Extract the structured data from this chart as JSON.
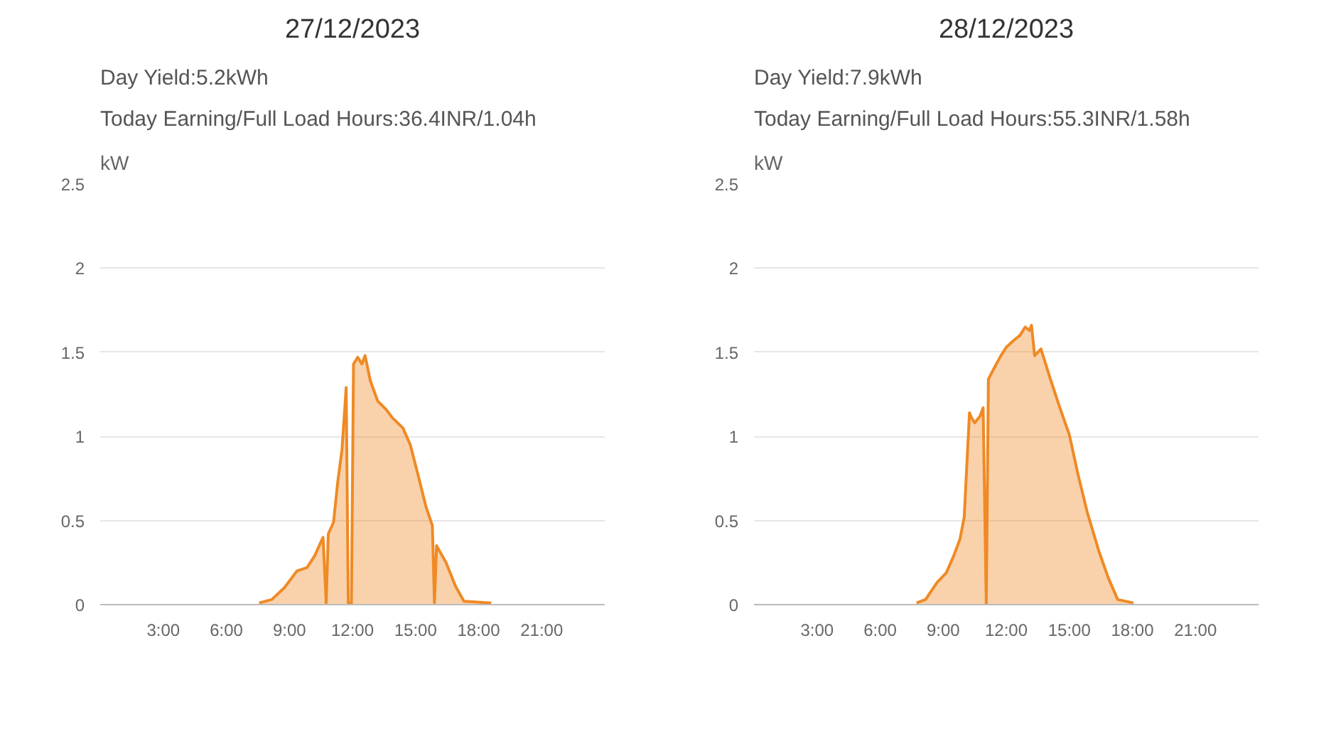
{
  "chart_data": [
    {
      "type": "area",
      "title": "27/12/2023",
      "subtitle": "Day Yield:5.2kWh",
      "annotations": [
        "Today Earning/Full Load Hours:36.4INR/1.04h"
      ],
      "ylabel": "kW",
      "xlim": [
        0,
        24
      ],
      "ylim": [
        0,
        2.5
      ],
      "xticks": [
        {
          "value": 3,
          "label": "3:00"
        },
        {
          "value": 6,
          "label": "6:00"
        },
        {
          "value": 9,
          "label": "9:00"
        },
        {
          "value": 12,
          "label": "12:00"
        },
        {
          "value": 15,
          "label": "15:00"
        },
        {
          "value": 18,
          "label": "18:00"
        },
        {
          "value": 21,
          "label": "21:00"
        }
      ],
      "yticks": [
        0,
        0.5,
        1,
        1.5,
        2,
        2.5
      ],
      "grid": "y",
      "x": [
        7.56,
        8.16,
        8.76,
        9.36,
        9.84,
        10.2,
        10.6,
        10.75,
        10.85,
        11.1,
        11.3,
        11.5,
        11.7,
        11.8,
        11.95,
        12.05,
        12.25,
        12.45,
        12.6,
        12.85,
        13.2,
        13.6,
        13.9,
        14.4,
        14.75,
        15.1,
        15.5,
        15.8,
        15.9,
        16.0,
        16.45,
        16.9,
        17.3,
        18.6
      ],
      "series": [
        {
          "color": "#ef8a25",
          "values": [
            0.01,
            0.03,
            0.1,
            0.2,
            0.22,
            0.29,
            0.4,
            0.01,
            0.42,
            0.49,
            0.73,
            0.92,
            1.29,
            0.01,
            0.01,
            1.43,
            1.47,
            1.43,
            1.48,
            1.33,
            1.21,
            1.16,
            1.11,
            1.05,
            0.95,
            0.78,
            0.58,
            0.47,
            0.01,
            0.35,
            0.25,
            0.11,
            0.02,
            0.01
          ]
        }
      ]
    },
    {
      "type": "area",
      "title": "28/12/2023",
      "subtitle": "Day Yield:7.9kWh",
      "annotations": [
        "Today Earning/Full Load Hours:55.3INR/1.58h"
      ],
      "ylabel": "kW",
      "xlim": [
        0,
        24
      ],
      "ylim": [
        0,
        2.5
      ],
      "xticks": [
        {
          "value": 3,
          "label": "3:00"
        },
        {
          "value": 6,
          "label": "6:00"
        },
        {
          "value": 9,
          "label": "9:00"
        },
        {
          "value": 12,
          "label": "12:00"
        },
        {
          "value": 15,
          "label": "15:00"
        },
        {
          "value": 18,
          "label": "18:00"
        },
        {
          "value": 21,
          "label": "21:00"
        }
      ],
      "yticks": [
        0,
        0.5,
        1,
        1.5,
        2,
        2.5
      ],
      "grid": "y",
      "x": [
        7.73,
        8.16,
        8.7,
        9.15,
        9.5,
        9.8,
        10.0,
        10.25,
        10.35,
        10.5,
        10.75,
        10.9,
        11.05,
        11.15,
        11.4,
        11.7,
        12.0,
        12.35,
        12.65,
        12.9,
        13.1,
        13.2,
        13.35,
        13.65,
        14.1,
        14.55,
        15.0,
        15.4,
        15.85,
        16.4,
        16.85,
        17.3,
        18.05
      ],
      "series": [
        {
          "color": "#ef8a25",
          "values": [
            0.01,
            0.03,
            0.13,
            0.19,
            0.29,
            0.39,
            0.52,
            1.14,
            1.11,
            1.08,
            1.12,
            1.17,
            0.0,
            1.34,
            1.4,
            1.47,
            1.53,
            1.57,
            1.6,
            1.65,
            1.63,
            1.66,
            1.48,
            1.52,
            1.34,
            1.17,
            1.01,
            0.78,
            0.55,
            0.32,
            0.16,
            0.03,
            0.01
          ]
        }
      ]
    }
  ]
}
